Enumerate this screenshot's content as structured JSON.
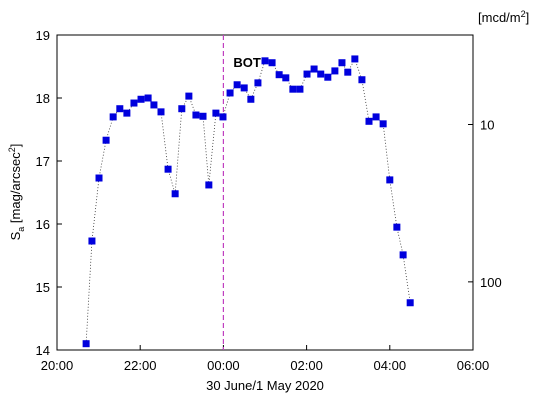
{
  "chart_data": {
    "type": "line",
    "annotation": {
      "x": 24,
      "label": "BOT",
      "color": "#c040c0"
    },
    "xlabel": "30 June/1 May 2020",
    "ylabel": {
      "main": "S",
      "sub": "a",
      "rest": " [mag/arcsec",
      "sup": "2",
      "end": "]"
    },
    "y2label": {
      "main": "[mcd/m",
      "sup": "2",
      "end": "]"
    },
    "xlim": [
      20,
      30
    ],
    "xticks": [
      {
        "value": 20,
        "label": "20:00"
      },
      {
        "value": 22,
        "label": "22:00"
      },
      {
        "value": 24,
        "label": "00:00"
      },
      {
        "value": 26,
        "label": "02:00"
      },
      {
        "value": 28,
        "label": "04:00"
      },
      {
        "value": 30,
        "label": "06:00"
      }
    ],
    "ylim": [
      14,
      19
    ],
    "yticks": [
      14,
      15,
      16,
      17,
      18,
      19
    ],
    "y2lim": [
      271,
      2.7
    ],
    "y2ticks": [
      10,
      100
    ],
    "y2log": true,
    "series": [
      {
        "color": "#0000dd",
        "x": [
          20.7,
          20.84,
          21.01,
          21.18,
          21.35,
          21.51,
          21.68,
          21.85,
          22.02,
          22.19,
          22.33,
          22.5,
          22.67,
          22.84,
          23.0,
          23.17,
          23.34,
          23.51,
          23.65,
          23.82,
          23.99,
          24.16,
          24.33,
          24.5,
          24.66,
          24.83,
          25.0,
          25.17,
          25.34,
          25.5,
          25.67,
          25.84,
          26.01,
          26.18,
          26.34,
          26.51,
          26.68,
          26.85,
          26.99,
          27.16,
          27.33,
          27.5,
          27.67,
          27.84,
          28.0,
          28.17,
          28.32,
          28.49
        ],
        "values": [
          14.1,
          15.73,
          16.73,
          17.33,
          17.7,
          17.83,
          17.76,
          17.92,
          17.98,
          18.0,
          17.89,
          17.78,
          16.87,
          16.48,
          17.83,
          18.03,
          17.73,
          17.71,
          16.62,
          17.76,
          17.7,
          18.08,
          18.21,
          18.16,
          17.98,
          18.24,
          18.59,
          18.56,
          18.37,
          18.32,
          18.14,
          18.14,
          18.38,
          18.46,
          18.38,
          18.33,
          18.43,
          18.56,
          18.41,
          18.62,
          18.29,
          17.63,
          17.7,
          17.59,
          16.7,
          15.95,
          15.51,
          14.75
        ]
      }
    ]
  }
}
